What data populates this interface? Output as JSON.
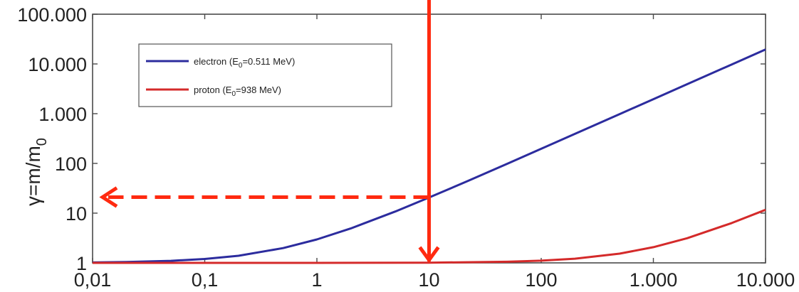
{
  "chart_data": {
    "type": "line",
    "xscale": "log",
    "yscale": "log",
    "xlim": [
      0.01,
      10000
    ],
    "ylim": [
      1,
      100000
    ],
    "x_ticks": [
      {
        "value": 0.01,
        "label": "0,01"
      },
      {
        "value": 0.1,
        "label": "0,1"
      },
      {
        "value": 1,
        "label": "1"
      },
      {
        "value": 10,
        "label": "10"
      },
      {
        "value": 100,
        "label": "100"
      },
      {
        "value": 1000,
        "label": "1.000"
      },
      {
        "value": 10000,
        "label": "10.000"
      }
    ],
    "y_ticks": [
      {
        "value": 1,
        "label": "1"
      },
      {
        "value": 10,
        "label": "10"
      },
      {
        "value": 100,
        "label": "100"
      },
      {
        "value": 1000,
        "label": "1.000"
      },
      {
        "value": 10000,
        "label": "10.000"
      },
      {
        "value": 100000,
        "label": "100.000"
      }
    ],
    "ylabel_main": "γ=m/m",
    "ylabel_sub": "0",
    "xlabel": "",
    "title": "",
    "grid": false,
    "legend_position": "top-left",
    "series": [
      {
        "name_main": "electron (E",
        "name_sub": "0",
        "name_rest": "=0.511 MeV)",
        "color": "#2c2c9e",
        "rest_energy_MeV": 0.511,
        "x": [
          0.01,
          0.02,
          0.05,
          0.1,
          0.2,
          0.5,
          1,
          2,
          5,
          10,
          20,
          50,
          100,
          200,
          500,
          1000,
          2000,
          5000,
          10000
        ],
        "y": [
          1.02,
          1.04,
          1.1,
          1.2,
          1.39,
          1.98,
          2.96,
          4.91,
          10.8,
          20.6,
          40.1,
          98.8,
          196.7,
          392.4,
          979.5,
          1958,
          3915,
          9786,
          19570
        ]
      },
      {
        "name_main": "proton (E",
        "name_sub": "0",
        "name_rest": "=938 MeV)",
        "color": "#d42a2a",
        "rest_energy_MeV": 938,
        "x": [
          0.01,
          0.1,
          1,
          10,
          50,
          100,
          200,
          500,
          1000,
          2000,
          5000,
          10000
        ],
        "y": [
          1,
          1,
          1.001,
          1.011,
          1.053,
          1.107,
          1.213,
          1.533,
          2.066,
          3.132,
          6.33,
          11.66
        ]
      }
    ],
    "annotations": [
      {
        "type": "arrow",
        "style": "solid",
        "color": "#ff2a10",
        "from": [
          10,
          100000
        ],
        "to": [
          10,
          1
        ]
      },
      {
        "type": "arrow",
        "style": "dashed",
        "color": "#ff2a10",
        "from": [
          10,
          21
        ],
        "to": [
          0.01,
          21
        ]
      }
    ]
  }
}
